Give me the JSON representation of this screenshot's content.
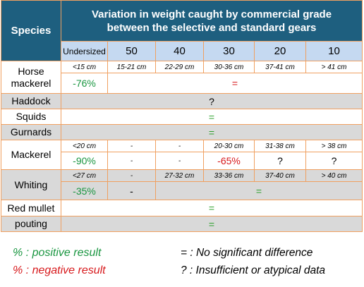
{
  "header": {
    "species_label": "Species",
    "title_line1": "Variation in weight caught by commercial grade",
    "title_line2": "between the selective and standard gears",
    "grades": [
      "Undersized",
      "50",
      "40",
      "30",
      "20",
      "10"
    ]
  },
  "rows": {
    "horse_mackerel": {
      "name_line1": "Horse",
      "name_line2": "mackerel",
      "sizes": [
        "<15 cm",
        "15-21 cm",
        "22-29 cm",
        "30-36 cm",
        "37-41 cm",
        "> 41 cm"
      ],
      "undersized_value": "-76%",
      "rest_value": "="
    },
    "haddock": {
      "name": "Haddock",
      "value": "?"
    },
    "squids": {
      "name": "Squids",
      "value": "="
    },
    "gurnards": {
      "name": "Gurnards",
      "value": "="
    },
    "mackerel": {
      "name": "Mackerel",
      "sizes": [
        "<20 cm",
        "-",
        "-",
        "20-30 cm",
        "31-38 cm",
        "> 38 cm"
      ],
      "values": [
        "-90%",
        "-",
        "-",
        "-65%",
        "?",
        "?"
      ]
    },
    "whiting": {
      "name": "Whiting",
      "sizes": [
        "<27 cm",
        "-",
        "27-32 cm",
        "33-36 cm",
        "37-40 cm",
        "> 40 cm"
      ],
      "undersized_value": "-35%",
      "grade50_value": "-",
      "rest_value": "="
    },
    "red_mullet": {
      "name": "Red mullet",
      "value": "="
    },
    "pouting": {
      "name": "pouting",
      "value": "="
    }
  },
  "legend": {
    "positive": "% : positive result",
    "negative": "% : negative result",
    "no_diff": "= : No significant difference",
    "insufficient": "? : Insufficient or atypical data"
  },
  "colors": {
    "header_bg": "#1e5f7f",
    "grade_bg": "#c5d9f1",
    "grey_bg": "#d9d9d9",
    "border": "#f0a060",
    "positive": "#1a9641",
    "negative": "#d7191c"
  }
}
